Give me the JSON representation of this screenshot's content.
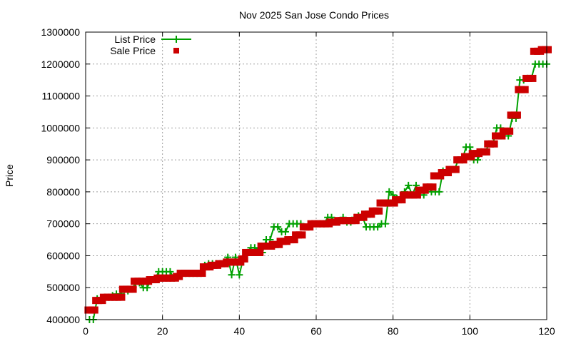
{
  "chart_data": {
    "type": "line",
    "title": "Nov 2025 San Jose Condo Prices",
    "xlabel": "",
    "ylabel": "Price",
    "xlim": [
      0,
      120
    ],
    "ylim": [
      400000,
      1300000
    ],
    "xticks": [
      "0",
      "20",
      "40",
      "60",
      "80",
      "100",
      "120"
    ],
    "yticks": [
      "400000",
      "500000",
      "600000",
      "700000",
      "800000",
      "900000",
      "1000000",
      "1100000",
      "1200000",
      "1300000"
    ],
    "grid": true,
    "legend_position": "top-left",
    "colors": {
      "list": "#00a000",
      "sale": "#cc0000"
    },
    "x": [
      1,
      2,
      3,
      4,
      5,
      6,
      7,
      8,
      9,
      10,
      11,
      12,
      13,
      14,
      15,
      16,
      17,
      18,
      19,
      20,
      21,
      22,
      23,
      24,
      25,
      26,
      27,
      28,
      29,
      30,
      31,
      32,
      33,
      34,
      35,
      36,
      37,
      38,
      39,
      40,
      41,
      42,
      43,
      44,
      45,
      46,
      47,
      48,
      49,
      50,
      51,
      52,
      53,
      54,
      55,
      56,
      57,
      58,
      59,
      60,
      61,
      62,
      63,
      64,
      65,
      66,
      67,
      68,
      69,
      70,
      71,
      72,
      73,
      74,
      75,
      76,
      77,
      78,
      79,
      80,
      81,
      82,
      83,
      84,
      85,
      86,
      87,
      88,
      89,
      90,
      91,
      92,
      93,
      94,
      95,
      96,
      97,
      98,
      99,
      100,
      101,
      102,
      103,
      104,
      105,
      106,
      107,
      108,
      109,
      110,
      111,
      112,
      113,
      114,
      115,
      116,
      117,
      118,
      119,
      120
    ],
    "series": [
      {
        "name": "List Price",
        "style": "linespoints",
        "values": [
          400000,
          400000,
          465000,
          465000,
          470000,
          470000,
          475000,
          480000,
          480000,
          490000,
          490000,
          495000,
          515000,
          515000,
          500000,
          500000,
          525000,
          525000,
          550000,
          550000,
          550000,
          550000,
          530000,
          535000,
          545000,
          545000,
          545000,
          545000,
          545000,
          545000,
          570000,
          575000,
          575000,
          575000,
          575000,
          580000,
          595000,
          540000,
          595000,
          540000,
          590000,
          610000,
          625000,
          625000,
          620000,
          610000,
          650000,
          650000,
          690000,
          690000,
          675000,
          675000,
          700000,
          700000,
          700000,
          700000,
          690000,
          690000,
          700000,
          700000,
          700000,
          700000,
          720000,
          720000,
          705000,
          705000,
          720000,
          705000,
          705000,
          720000,
          725000,
          725000,
          690000,
          690000,
          690000,
          690000,
          700000,
          700000,
          800000,
          790000,
          780000,
          780000,
          800000,
          820000,
          790000,
          820000,
          790000,
          790000,
          815000,
          800000,
          800000,
          800000,
          865000,
          865000,
          870000,
          870000,
          900000,
          900000,
          940000,
          940000,
          900000,
          900000,
          925000,
          925000,
          950000,
          950000,
          1000000,
          1000000,
          975000,
          975000,
          1030000,
          1030000,
          1150000,
          1150000,
          1155000,
          1155000,
          1200000,
          1200000,
          1200000,
          1200000
        ]
      },
      {
        "name": "Sale Price",
        "style": "points",
        "values": [
          430000,
          430000,
          460000,
          460000,
          470000,
          470000,
          470000,
          470000,
          470000,
          495000,
          495000,
          495000,
          520000,
          520000,
          520000,
          520000,
          525000,
          525000,
          530000,
          530000,
          530000,
          530000,
          530000,
          535000,
          545000,
          545000,
          545000,
          545000,
          545000,
          545000,
          565000,
          565000,
          570000,
          570000,
          575000,
          575000,
          580000,
          580000,
          580000,
          580000,
          590000,
          610000,
          610000,
          610000,
          610000,
          630000,
          630000,
          630000,
          635000,
          635000,
          645000,
          645000,
          650000,
          650000,
          665000,
          665000,
          690000,
          690000,
          700000,
          700000,
          700000,
          700000,
          700000,
          705000,
          705000,
          710000,
          710000,
          710000,
          710000,
          710000,
          720000,
          720000,
          730000,
          730000,
          740000,
          740000,
          765000,
          765000,
          765000,
          765000,
          775000,
          775000,
          790000,
          790000,
          790000,
          790000,
          805000,
          805000,
          815000,
          815000,
          850000,
          850000,
          860000,
          860000,
          870000,
          870000,
          900000,
          900000,
          910000,
          910000,
          920000,
          920000,
          925000,
          925000,
          950000,
          950000,
          975000,
          975000,
          990000,
          990000,
          1040000,
          1040000,
          1120000,
          1120000,
          1155000,
          1155000,
          1240000,
          1240000,
          1245000,
          1245000
        ]
      }
    ]
  }
}
